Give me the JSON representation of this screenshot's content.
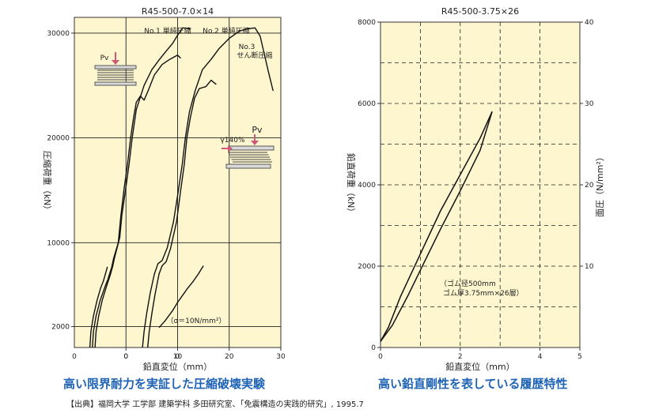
{
  "captions": {
    "left": "高い限界耐力を実証した圧縮破壊実験",
    "right": "高い鉛直剛性を表している履歴特性"
  },
  "source": "【出典】福岡大学 工学部 建築学科 多田研究室、「免震構造の実践的研究」, 1995.7",
  "colors": {
    "plot_bg": "#fdf6cf",
    "caption": "#1f63b5",
    "line": "#111111"
  },
  "chart_data": [
    {
      "type": "line",
      "title": "R45-500-7.0×14",
      "xlabel": "鉛直変位（mm）",
      "ylabel": "圧縮荷重（kN）",
      "xlim": [
        -10,
        30
      ],
      "ylim": [
        0,
        31500
      ],
      "xticks": [
        0,
        10,
        20,
        30
      ],
      "xtick_labels": [
        "0",
        "10",
        "20",
        "30"
      ],
      "xtick_offset_marks": [
        {
          "x": -10,
          "label": "0"
        },
        {
          "x": 0,
          "label": "0"
        },
        {
          "x": 10,
          "label": "0"
        }
      ],
      "yticks": [
        2000,
        10000,
        20000,
        30000
      ],
      "gridlines_y": [
        2000,
        10000,
        20000,
        30000
      ],
      "gridlines_x": [
        0,
        10,
        20
      ],
      "grid": true,
      "annotations": [
        "No.1 単純圧縮",
        "No.2 単純圧縮",
        "No.3",
        "せん断圧縮",
        "（σ＝10N/mm²）",
        "Pv",
        "Pv",
        "γ140%"
      ],
      "series": [
        {
          "points": [
            [
              -6.5,
              0
            ],
            [
              -6.3,
              1500
            ],
            [
              -5.8,
              3000
            ],
            [
              -5.0,
              4500
            ],
            [
              -4.0,
              5900
            ],
            [
              -3.5,
              6500
            ],
            [
              -3.2,
              7000
            ],
            [
              -2.8,
              7600
            ],
            [
              -2.4,
              8500
            ],
            [
              -1.5,
              10000
            ],
            [
              -1.0,
              12500
            ],
            [
              -0.4,
              15000
            ],
            [
              0.3,
              17500
            ],
            [
              0.9,
              20000
            ],
            [
              1.5,
              22000
            ],
            [
              2.0,
              23400
            ],
            [
              2.8,
              24000
            ],
            [
              3.5,
              23600
            ],
            [
              4.3,
              24500
            ],
            [
              5.5,
              26000
            ],
            [
              7.0,
              27000
            ],
            [
              8.5,
              27500
            ],
            [
              10.0,
              27900
            ],
            [
              10.6,
              27600
            ]
          ]
        },
        {
          "points": [
            [
              -6.0,
              0
            ],
            [
              -5.8,
              1500
            ],
            [
              -5.3,
              3000
            ],
            [
              -4.6,
              4500
            ],
            [
              -3.8,
              5800
            ],
            [
              -3.4,
              6400
            ],
            [
              -3.0,
              7000
            ],
            [
              -2.6,
              7700
            ],
            [
              -2.2,
              8600
            ],
            [
              -1.2,
              10500
            ],
            [
              -0.8,
              12600
            ],
            [
              -0.1,
              15000
            ],
            [
              0.6,
              17500
            ],
            [
              1.2,
              20000
            ],
            [
              2.0,
              22700
            ],
            [
              3.5,
              25000
            ],
            [
              5.0,
              26500
            ],
            [
              6.5,
              27500
            ],
            [
              8.0,
              28400
            ],
            [
              9.0,
              29000
            ],
            [
              10.0,
              29800
            ],
            [
              11.0,
              30500
            ],
            [
              12.5,
              30400
            ]
          ]
        },
        {
          "points": [
            [
              -7.0,
              0
            ],
            [
              -6.8,
              1500
            ],
            [
              -6.3,
              3000
            ],
            [
              -5.6,
              4500
            ],
            [
              -4.9,
              5700
            ],
            [
              -4.4,
              6300
            ],
            [
              -4.0,
              7000
            ],
            [
              -3.6,
              7700
            ]
          ]
        },
        {
          "points": [
            [
              4.2,
              0
            ],
            [
              4.5,
              1500
            ],
            [
              5.0,
              3200
            ],
            [
              5.6,
              5000
            ],
            [
              6.4,
              7000
            ],
            [
              7.0,
              7800
            ],
            [
              7.8,
              8200
            ],
            [
              8.6,
              9400
            ],
            [
              9.8,
              12000
            ],
            [
              10.6,
              15000
            ],
            [
              11.3,
              17500
            ],
            [
              11.8,
              20000
            ],
            [
              12.5,
              22000
            ],
            [
              13.3,
              23800
            ],
            [
              14.2,
              24700
            ],
            [
              15.5,
              24900
            ],
            [
              16.5,
              25500
            ],
            [
              17.5,
              25100
            ]
          ]
        },
        {
          "points": [
            [
              3.2,
              0
            ],
            [
              3.5,
              1500
            ],
            [
              4.0,
              3200
            ],
            [
              4.7,
              5200
            ],
            [
              5.5,
              7000
            ],
            [
              6.2,
              8000
            ],
            [
              7.0,
              8300
            ],
            [
              8.0,
              9500
            ],
            [
              9.2,
              12000
            ],
            [
              10.0,
              14500
            ],
            [
              10.9,
              17500
            ],
            [
              11.5,
              20000
            ],
            [
              12.3,
              22500
            ],
            [
              13.4,
              24500
            ],
            [
              14.8,
              26500
            ],
            [
              16.5,
              27500
            ],
            [
              18.0,
              28500
            ],
            [
              20.0,
              29500
            ],
            [
              22.0,
              30200
            ],
            [
              23.5,
              30400
            ],
            [
              25.0,
              30500
            ],
            [
              26.0,
              29700
            ],
            [
              27.5,
              26500
            ],
            [
              28.5,
              24500
            ]
          ]
        },
        {
          "points": [
            [
              6.4,
              1900
            ],
            [
              7.5,
              2500
            ],
            [
              9.0,
              3500
            ],
            [
              10.0,
              4300
            ],
            [
              11.0,
              5000
            ],
            [
              12.0,
              5700
            ],
            [
              13.0,
              6300
            ],
            [
              14.0,
              7000
            ],
            [
              15.0,
              7800
            ]
          ]
        }
      ]
    },
    {
      "type": "line",
      "title": "R45-500-3.75×26",
      "xlabel": "鉛直変位（mm）",
      "ylabel": "鉛直荷重（kN）",
      "y2label": "面圧（N/mm²）",
      "xlim": [
        0,
        5
      ],
      "ylim": [
        0,
        8000
      ],
      "y2lim": [
        0,
        40
      ],
      "xticks": [
        0,
        2,
        4,
        5
      ],
      "yticks": [
        0,
        2000,
        4000,
        6000,
        8000
      ],
      "y2ticks": [
        10,
        20,
        30,
        40
      ],
      "gridlines_y": [
        1000,
        2000,
        3000,
        4000,
        5000,
        6000,
        7000
      ],
      "gridlines_x": [
        1,
        2,
        3,
        4
      ],
      "grid": true,
      "annotations": [
        "（ゴム径500mm",
        "ゴム厚3.75mm×26層）"
      ],
      "series": [
        {
          "points": [
            [
              0,
              150
            ],
            [
              0.2,
              500
            ],
            [
              0.5,
              1250
            ],
            [
              1.0,
              2300
            ],
            [
              1.5,
              3350
            ],
            [
              2.0,
              4250
            ],
            [
              2.5,
              5150
            ],
            [
              2.8,
              5800
            ]
          ]
        },
        {
          "points": [
            [
              0,
              150
            ],
            [
              0.3,
              550
            ],
            [
              0.7,
              1300
            ],
            [
              1.0,
              1900
            ],
            [
              1.5,
              2900
            ],
            [
              2.0,
              3850
            ],
            [
              2.5,
              4850
            ],
            [
              2.8,
              5800
            ]
          ]
        }
      ]
    }
  ]
}
